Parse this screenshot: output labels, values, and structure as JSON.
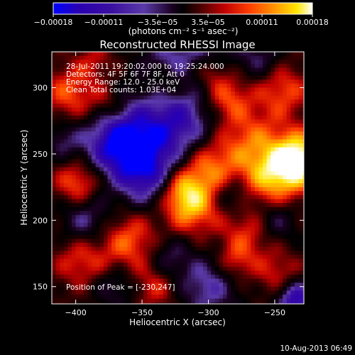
{
  "chart_data": {
    "type": "heatmap",
    "title": "Reconstructed RHESSI Image",
    "xlabel": "Heliocentric X (arcsec)",
    "ylabel": "Heliocentric Y (arcsec)",
    "xlim": [
      -418,
      -228
    ],
    "ylim": [
      137,
      327
    ],
    "xticks": [
      -400,
      -350,
      -300,
      -250
    ],
    "xtick_labels": [
      "−400",
      "−350",
      "−300",
      "−250"
    ],
    "yticks": [
      150,
      200,
      250,
      300
    ],
    "ytick_labels": [
      "150",
      "200",
      "250",
      "300"
    ],
    "colorbar": {
      "range": [
        -0.00018,
        0.00018
      ],
      "ticks": [
        -0.00018,
        -0.00011,
        -3.5e-05,
        3.5e-05,
        0.00011,
        0.00018
      ],
      "tick_labels": [
        "−0.00018",
        "−0.00011",
        "−3.5e−05",
        "3.5e−05",
        "0.00011",
        "0.00018"
      ],
      "label": "(photons cm⁻² s⁻¹ asec⁻²)",
      "colors": [
        "#0000ff",
        "#2a00b0",
        "#3a0ea0",
        "#5a3aa8",
        "#1a0020",
        "#000000",
        "#400000",
        "#c00000",
        "#ff4000",
        "#ff9a00",
        "#ffe600",
        "#ffffff"
      ]
    },
    "annotations": [
      "28-Jul-2011 19:20:02.000 to 19:25:24.000",
      "Detectors: 4F 5F 6F 7F 8F, Att 0",
      "Energy Range: 12.0 - 25.0 keV",
      "Clean     Total counts: 1.03E+04"
    ],
    "peak_label": "Position of Peak = [-230,247]",
    "peak_position": [
      -230,
      247
    ],
    "grid": false
  },
  "footer": {
    "date": "10-Aug-2013 06:49"
  }
}
